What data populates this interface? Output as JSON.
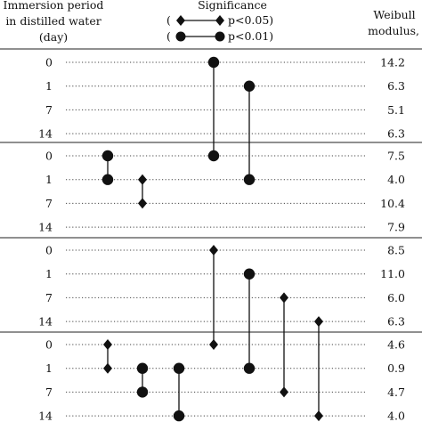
{
  "header": {
    "immersion_lines": [
      "Immersion period",
      "in distilled water",
      "(day)"
    ],
    "significance_title": "Significance",
    "legend": [
      {
        "marker": "diamond",
        "open": "(",
        "text": "p<0.05)"
      },
      {
        "marker": "circle",
        "open": "(",
        "text": "p<0.01)"
      }
    ],
    "weibull_lines": [
      "Weibull",
      "modulus, m"
    ]
  },
  "groups": [
    {
      "rows": [
        {
          "day": "0",
          "modulus": "14.2"
        },
        {
          "day": "1",
          "modulus": "6.3"
        },
        {
          "day": "7",
          "modulus": "5.1"
        },
        {
          "day": "14",
          "modulus": "6.3"
        }
      ]
    },
    {
      "rows": [
        {
          "day": "0",
          "modulus": "7.5"
        },
        {
          "day": "1",
          "modulus": "4.0"
        },
        {
          "day": "7",
          "modulus": "10.4"
        },
        {
          "day": "14",
          "modulus": "7.9"
        }
      ]
    },
    {
      "rows": [
        {
          "day": "0",
          "modulus": "8.5"
        },
        {
          "day": "1",
          "modulus": "11.0"
        },
        {
          "day": "7",
          "modulus": "6.0"
        },
        {
          "day": "14",
          "modulus": "6.3"
        }
      ]
    },
    {
      "rows": [
        {
          "day": "0",
          "modulus": "4.6"
        },
        {
          "day": "1",
          "modulus": "0.9"
        },
        {
          "day": "7",
          "modulus": "4.7"
        },
        {
          "day": "14",
          "modulus": "4.0"
        }
      ]
    }
  ],
  "comparisons": [
    {
      "from": [
        0,
        0
      ],
      "to": [
        1,
        0
      ],
      "level": "p<0.01",
      "marker": "circle",
      "column": 3
    },
    {
      "from": [
        0,
        1
      ],
      "to": [
        1,
        1
      ],
      "level": "p<0.01",
      "marker": "circle",
      "column": 4
    },
    {
      "from": [
        1,
        0
      ],
      "to": [
        1,
        1
      ],
      "level": "p<0.01",
      "marker": "circle",
      "column": 0
    },
    {
      "from": [
        1,
        1
      ],
      "to": [
        1,
        2
      ],
      "level": "p<0.05",
      "marker": "diamond",
      "column": 1
    },
    {
      "from": [
        2,
        0
      ],
      "to": [
        3,
        0
      ],
      "level": "p<0.05",
      "marker": "diamond",
      "column": 3
    },
    {
      "from": [
        2,
        1
      ],
      "to": [
        3,
        1
      ],
      "level": "p<0.01",
      "marker": "circle",
      "column": 4
    },
    {
      "from": [
        2,
        2
      ],
      "to": [
        3,
        2
      ],
      "level": "p<0.05",
      "marker": "diamond",
      "column": 5
    },
    {
      "from": [
        2,
        3
      ],
      "to": [
        3,
        3
      ],
      "level": "p<0.05",
      "marker": "diamond",
      "column": 6
    },
    {
      "from": [
        3,
        0
      ],
      "to": [
        3,
        1
      ],
      "level": "p<0.05",
      "marker": "diamond",
      "column": 0
    },
    {
      "from": [
        3,
        1
      ],
      "to": [
        3,
        2
      ],
      "level": "p<0.01",
      "marker": "circle",
      "column": 1
    },
    {
      "from": [
        3,
        1
      ],
      "to": [
        3,
        3
      ],
      "level": "p<0.01",
      "marker": "circle",
      "column": 2
    }
  ]
}
